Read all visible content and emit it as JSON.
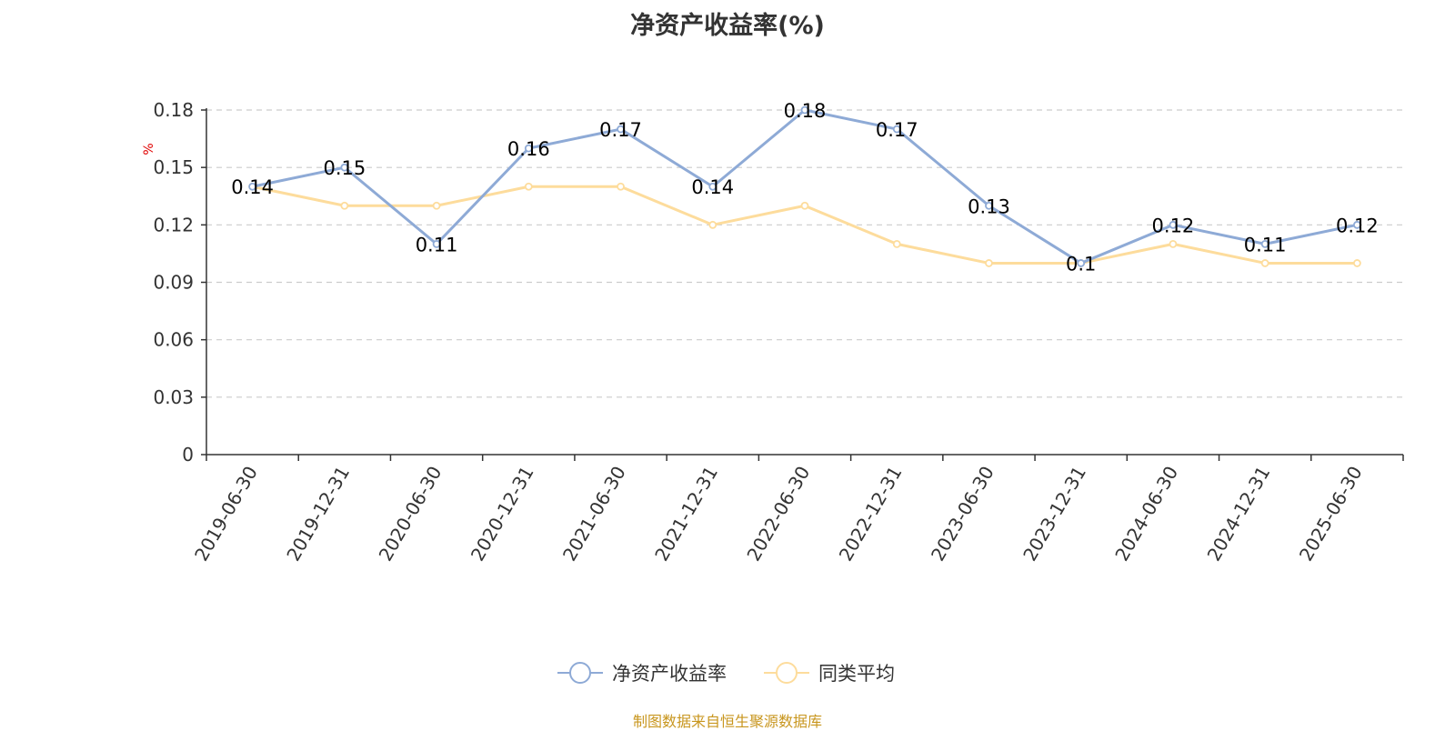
{
  "chart_data": {
    "type": "line",
    "title": "净资产收益率(%)",
    "ylabel": "%",
    "categories": [
      "2019-06-30",
      "2019-12-31",
      "2020-06-30",
      "2020-12-31",
      "2021-06-30",
      "2021-12-31",
      "2022-06-30",
      "2022-12-31",
      "2023-06-30",
      "2023-12-31",
      "2024-06-30",
      "2024-12-31",
      "2025-06-30"
    ],
    "yticks": [
      "0",
      "0.03",
      "0.06",
      "0.09",
      "0.12",
      "0.15",
      "0.18"
    ],
    "ylim": [
      0,
      0.18
    ],
    "grid": true,
    "legend_position": "bottom-center",
    "series": [
      {
        "name": "净资产收益率",
        "color": "#8eaad6",
        "values": [
          0.14,
          0.15,
          0.11,
          0.16,
          0.17,
          0.14,
          0.18,
          0.17,
          0.13,
          0.1,
          0.12,
          0.11,
          0.12
        ],
        "labels": [
          "0.14",
          "0.15",
          "0.11",
          "0.16",
          "0.17",
          "0.14",
          "0.18",
          "0.17",
          "0.13",
          "0.1",
          "0.12",
          "0.11",
          "0.12"
        ]
      },
      {
        "name": "同类平均",
        "color": "#fddc9c",
        "values": [
          0.14,
          0.13,
          0.13,
          0.14,
          0.14,
          0.12,
          0.13,
          0.11,
          0.1,
          0.1,
          0.11,
          0.1,
          0.1
        ]
      }
    ]
  },
  "source": "制图数据来自恒生聚源数据库"
}
